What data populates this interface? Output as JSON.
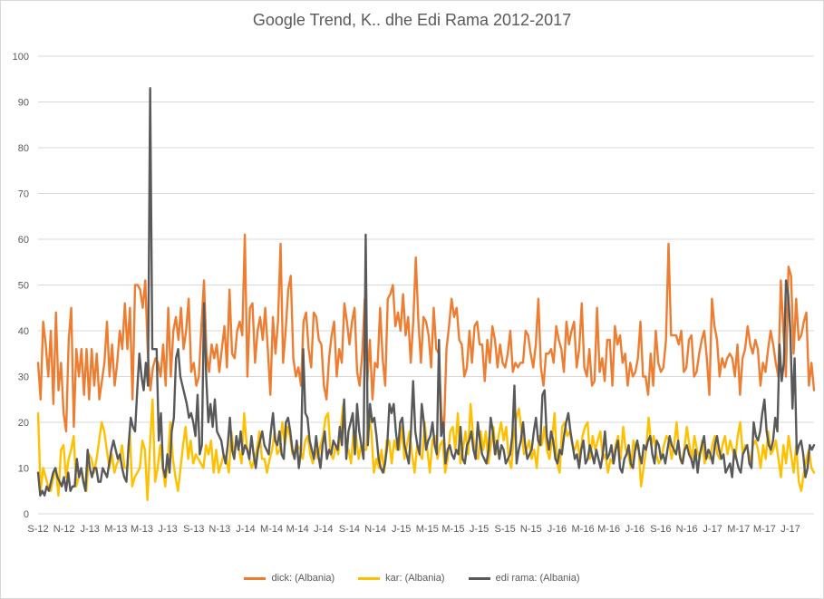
{
  "colors": {
    "dick": "#ed7d31",
    "kar": "#ffc000",
    "edi": "#595959",
    "grid": "#d9d9d9",
    "text": "#595959"
  },
  "chart_data": {
    "type": "line",
    "title": "Google Trend, K.. dhe Edi Rama 2012-2017",
    "xlabel": "",
    "ylabel": "",
    "ylim": [
      0,
      100
    ],
    "yticks": [
      "0",
      "10",
      "20",
      "30",
      "40",
      "50",
      "60",
      "70",
      "80",
      "90",
      "100"
    ],
    "grid": true,
    "legend_position": "bottom",
    "x_tick_labels": [
      "S-12",
      "N-12",
      "J-13",
      "M-13",
      "M-13",
      "J-13",
      "S-13",
      "N-13",
      "J-14",
      "M-14",
      "M-14",
      "J-14",
      "S-14",
      "N-14",
      "J-15",
      "M-15",
      "M-15",
      "J-15",
      "S-15",
      "N-15",
      "J-16",
      "M-16",
      "M-16",
      "J-16",
      "S-16",
      "N-16",
      "J-17",
      "M-17",
      "M-17",
      "J-17"
    ],
    "series": [
      {
        "name": "dick: (Albania)",
        "color": "#ed7d31",
        "values": [
          33,
          25,
          42,
          37,
          30,
          40,
          24,
          44,
          27,
          33,
          22,
          18,
          38,
          45,
          19,
          36,
          30,
          36,
          26,
          36,
          25,
          36,
          28,
          35,
          25,
          29,
          33,
          42,
          30,
          37,
          28,
          33,
          40,
          36,
          46,
          36,
          45,
          25,
          50,
          50,
          49,
          45,
          51,
          35,
          27,
          32,
          34,
          33,
          30,
          37,
          28,
          45,
          30,
          40,
          43,
          38,
          45,
          36,
          40,
          47,
          31,
          33,
          28,
          30,
          41,
          51,
          35,
          31,
          37,
          34,
          37,
          31,
          36,
          41,
          32,
          49,
          35,
          34,
          40,
          42,
          39,
          61,
          30,
          45,
          46,
          33,
          40,
          43,
          38,
          45,
          36,
          26,
          43,
          35,
          42,
          59,
          33,
          40,
          49,
          52,
          34,
          30,
          32,
          28,
          42,
          44,
          36,
          32,
          44,
          43,
          38,
          37,
          28,
          25,
          34,
          39,
          42,
          30,
          36,
          33,
          46,
          42,
          37,
          42,
          45,
          31,
          28,
          35,
          47,
          29,
          38,
          25,
          33,
          32,
          45,
          34,
          28,
          47,
          48,
          50,
          41,
          44,
          40,
          48,
          39,
          43,
          33,
          42,
          56,
          42,
          33,
          43,
          42,
          39,
          32,
          45,
          36,
          35,
          22,
          18,
          36,
          41,
          47,
          43,
          45,
          38,
          37,
          30,
          32,
          40,
          33,
          41,
          42,
          37,
          37,
          29,
          38,
          33,
          41,
          38,
          32,
          37,
          33,
          32,
          35,
          40,
          31,
          33,
          32,
          33,
          33,
          40,
          39,
          35,
          32,
          37,
          47,
          32,
          28,
          35,
          35,
          36,
          33,
          41,
          38,
          36,
          31,
          42,
          37,
          40,
          42,
          32,
          36,
          46,
          32,
          30,
          36,
          28,
          29,
          45,
          31,
          34,
          29,
          38,
          38,
          28,
          41,
          37,
          39,
          33,
          35,
          28,
          33,
          30,
          31,
          34,
          42,
          30,
          30,
          26,
          35,
          28,
          40,
          33,
          31,
          32,
          38,
          59,
          39,
          39,
          39,
          37,
          40,
          31,
          32,
          38,
          39,
          30,
          31,
          35,
          38,
          40,
          34,
          26,
          47,
          41,
          38,
          30,
          34,
          32,
          34,
          35,
          34,
          30,
          37,
          26,
          34,
          36,
          41,
          37,
          35,
          38,
          36,
          28,
          33,
          31,
          36,
          40,
          37,
          33,
          30,
          51,
          40,
          30,
          54,
          52,
          35,
          47,
          38,
          39,
          42,
          44,
          28,
          33,
          27
        ]
      },
      {
        "name": "kar: (Albania)",
        "color": "#ffc000",
        "values": [
          22,
          5,
          10,
          8,
          6,
          5,
          8,
          10,
          4,
          14,
          15,
          8,
          12,
          14,
          17,
          6,
          8,
          10,
          7,
          5,
          13,
          12,
          9,
          12,
          16,
          20,
          18,
          14,
          10,
          13,
          9,
          11,
          12,
          15,
          10,
          10,
          18,
          6,
          8,
          9,
          10,
          16,
          14,
          3,
          15,
          25,
          7,
          10,
          15,
          10,
          6,
          12,
          20,
          12,
          8,
          5,
          10,
          15,
          19,
          12,
          16,
          11,
          13,
          12,
          11,
          10,
          15,
          13,
          16,
          9,
          14,
          9,
          11,
          13,
          12,
          9,
          18,
          13,
          16,
          14,
          11,
          22,
          15,
          12,
          10,
          12,
          14,
          18,
          12,
          12,
          9,
          12,
          14,
          18,
          13,
          14,
          20,
          15,
          19,
          17,
          13,
          14,
          15,
          14,
          12,
          16,
          17,
          13,
          11,
          14,
          12,
          15,
          17,
          21,
          22,
          13,
          12,
          15,
          13,
          19,
          24,
          15,
          14,
          11,
          18,
          17,
          12,
          15,
          14,
          14,
          22,
          18,
          9,
          12,
          10,
          14,
          9,
          16,
          16,
          11,
          16,
          14,
          14,
          19,
          12,
          15,
          18,
          13,
          9,
          15,
          13,
          12,
          20,
          14,
          9,
          16,
          17,
          12,
          15,
          16,
          9,
          12,
          18,
          19,
          14,
          22,
          11,
          14,
          18,
          13,
          24,
          17,
          13,
          12,
          18,
          14,
          18,
          11,
          15,
          19,
          13,
          17,
          20,
          16,
          19,
          12,
          10,
          17,
          21,
          23,
          18,
          13,
          14,
          16,
          12,
          14,
          10,
          17,
          15,
          19,
          14,
          12,
          16,
          22,
          11,
          9,
          19,
          20,
          17,
          18,
          15,
          14,
          16,
          12,
          17,
          19,
          20,
          12,
          17,
          14,
          16,
          18,
          12,
          13,
          9,
          12,
          11,
          15,
          17,
          12,
          19,
          14,
          13,
          10,
          16,
          14,
          15,
          6,
          10,
          14,
          21,
          15,
          17,
          13,
          11,
          12,
          15,
          17,
          16,
          12,
          15,
          20,
          13,
          11,
          14,
          19,
          15,
          12,
          17,
          14,
          12,
          16,
          11,
          13,
          12,
          15,
          17,
          13,
          12,
          15,
          17,
          13,
          16,
          14,
          12,
          17,
          20,
          13,
          15,
          14,
          11,
          15,
          16,
          14,
          10,
          15,
          12,
          18,
          13,
          14,
          16,
          12,
          8,
          15,
          11,
          17,
          13,
          9,
          15,
          7,
          5,
          9,
          12,
          14,
          10,
          9
        ]
      },
      {
        "name": "edi rama: (Albania)",
        "color": "#595959",
        "values": [
          9,
          4,
          5,
          4,
          6,
          5,
          7,
          9,
          10,
          8,
          7,
          6,
          8,
          5,
          9,
          5,
          6,
          6,
          12,
          8,
          10,
          7,
          5,
          14,
          10,
          8,
          10,
          10,
          7,
          7,
          10,
          9,
          8,
          11,
          14,
          16,
          14,
          12,
          13,
          10,
          8,
          7,
          15,
          21,
          19,
          18,
          27,
          35,
          30,
          27,
          33,
          28,
          93,
          36,
          36,
          36,
          16,
          22,
          10,
          8,
          13,
          9,
          18,
          21,
          34,
          36,
          30,
          28,
          26,
          24,
          21,
          22,
          20,
          17,
          26,
          13,
          15,
          46,
          30,
          20,
          24,
          19,
          25,
          18,
          17,
          16,
          13,
          11,
          15,
          21,
          14,
          12,
          17,
          14,
          18,
          13,
          15,
          14,
          12,
          17,
          13,
          10,
          14,
          16,
          18,
          15,
          14,
          13,
          18,
          22,
          16,
          15,
          18,
          13,
          12,
          20,
          21,
          18,
          14,
          12,
          16,
          10,
          14,
          36,
          22,
          21,
          16,
          14,
          12,
          17,
          13,
          10,
          15,
          18,
          12,
          14,
          13,
          16,
          15,
          14,
          19,
          15,
          25,
          12,
          18,
          20,
          22,
          13,
          24,
          18,
          15,
          12,
          61,
          15,
          24,
          20,
          21,
          17,
          12,
          10,
          9,
          11,
          15,
          24,
          22,
          24,
          18,
          14,
          20,
          21,
          15,
          13,
          11,
          18,
          29,
          18,
          15,
          13,
          24,
          20,
          14,
          16,
          17,
          20,
          15,
          13,
          38,
          17,
          20,
          11,
          14,
          15,
          13,
          12,
          14,
          13,
          19,
          12,
          11,
          15,
          16,
          18,
          14,
          12,
          20,
          16,
          13,
          12,
          11,
          14,
          21,
          18,
          13,
          16,
          12,
          15,
          14,
          11,
          12,
          13,
          17,
          28,
          11,
          14,
          16,
          20,
          15,
          12,
          13,
          14,
          18,
          21,
          16,
          15,
          26,
          27,
          17,
          14,
          18,
          16,
          12,
          11,
          14,
          13,
          17,
          20,
          22,
          18,
          15,
          12,
          13,
          10,
          14,
          16,
          11,
          12,
          15,
          13,
          11,
          14,
          12,
          10,
          13,
          18,
          12,
          13,
          15,
          11,
          14,
          16,
          10,
          9,
          12,
          13,
          15,
          11,
          10,
          14,
          16,
          13,
          11,
          15,
          14,
          16,
          17,
          13,
          11,
          16,
          15,
          12,
          13,
          11,
          14,
          17,
          15,
          14,
          13,
          16,
          12,
          11,
          14,
          15,
          13,
          12,
          10,
          14,
          9,
          13,
          15,
          17,
          12,
          14,
          13,
          11,
          15,
          17,
          14,
          12,
          13,
          9,
          10,
          11,
          8,
          14,
          12,
          10,
          9,
          13,
          14,
          15,
          11,
          10,
          20,
          17,
          16,
          18,
          22,
          25,
          18,
          15,
          14,
          16,
          21,
          18,
          37,
          29,
          33,
          51,
          48,
          40,
          23,
          34,
          13,
          15,
          16,
          13,
          8,
          10,
          15,
          14,
          15
        ]
      }
    ]
  }
}
